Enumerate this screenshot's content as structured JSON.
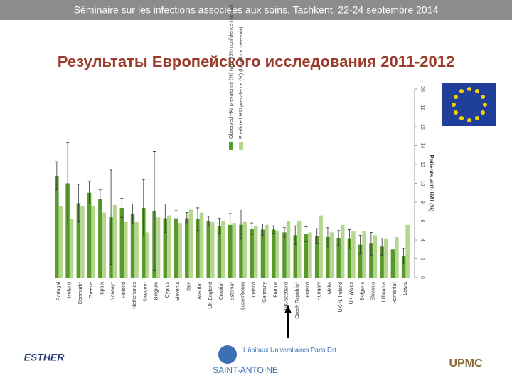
{
  "header": "Séminaire sur les infections associées aux soins, Tachkent, 22-24 septembre 2014",
  "title": "Результаты Европейского исследования 2011-2012",
  "logos": [
    "ESTHER",
    "Hôpitaux Universitaires Paris Est",
    "SAINT-ANTOINE",
    "UPMC"
  ],
  "chart_data": {
    "type": "bar",
    "y_label": "Patients with HAI (%)",
    "categories": [
      "Portugal",
      "Iceland",
      "Denmark*",
      "Greece",
      "Spain",
      "Norway*",
      "Finland",
      "Netherlands",
      "Sweden*",
      "Belgium",
      "Cyprus",
      "Slovenia",
      "Italy",
      "Austria*",
      "UK-England",
      "Croatia*",
      "Estonia*",
      "Luxembourg",
      "Ireland",
      "Germany",
      "France",
      "UK-Scotland",
      "Czech Republic*",
      "Poland",
      "Hungary",
      "Malta",
      "UK-N. Ireland",
      "UK-Wales",
      "Bulgaria",
      "Slovakia",
      "Lithuania",
      "Romania*",
      "Latvia"
    ],
    "series": [
      {
        "name": "Observed HAI prevalence (%) (with 95% confidence interval)",
        "color": "#5a9a2c",
        "values": [
          10.8,
          10.0,
          7.9,
          9.0,
          8.3,
          6.4,
          7.4,
          6.8,
          7.4,
          7.1,
          6.3,
          6.3,
          6.3,
          6.2,
          6.0,
          5.5,
          5.6,
          5.6,
          5.2,
          5.1,
          5.1,
          4.8,
          4.5,
          4.6,
          4.4,
          4.3,
          4.2,
          4.1,
          3.5,
          3.6,
          3.3,
          3.0,
          2.3
        ],
        "errors": [
          1.5,
          4.3,
          2.0,
          1.2,
          1.0,
          5.0,
          1.0,
          1.0,
          3.0,
          6.3,
          1.5,
          0.8,
          0.6,
          1.2,
          0.5,
          0.8,
          1.2,
          1.5,
          0.6,
          0.6,
          0.4,
          0.5,
          1.0,
          0.8,
          0.8,
          1.0,
          0.8,
          1.0,
          1.0,
          1.2,
          0.9,
          1.2,
          0.8
        ]
      },
      {
        "name": "Predicted HAI prevalence (%) (based on case-mix)",
        "color": "#b5d68f",
        "values": [
          7.6,
          6.2,
          7.6,
          7.6,
          6.9,
          7.7,
          5.9,
          5.9,
          4.8,
          6.4,
          6.6,
          5.8,
          7.2,
          6.9,
          5.9,
          6.0,
          5.8,
          5.9,
          5.5,
          5.6,
          5.0,
          6.0,
          6.0,
          4.8,
          6.6,
          4.8,
          5.6,
          4.9,
          4.9,
          4.5,
          4.1,
          4.3,
          5.6
        ]
      }
    ],
    "ylim": [
      0,
      20
    ],
    "yticks": [
      0,
      2,
      4,
      6,
      8,
      10,
      12,
      14,
      16,
      18,
      20
    ],
    "grid": false
  }
}
